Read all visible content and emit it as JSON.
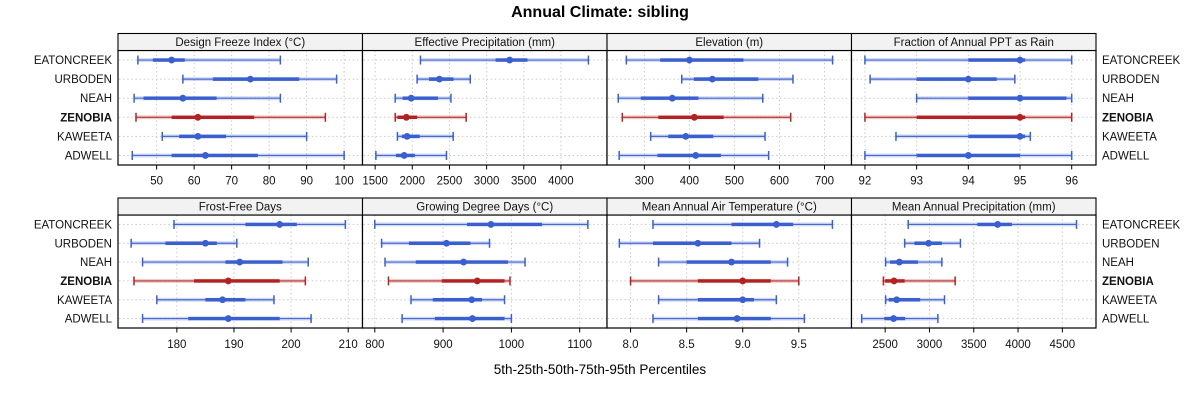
{
  "title": "Annual Climate: sibling",
  "footer": "5th-25th-50th-75th-95th Percentiles",
  "colors": {
    "series_blue": "#3A5FCE",
    "highlight_red": "#B22222",
    "header_bg": "#F2F2F2",
    "panel_border": "#000000",
    "grid": "#C9C9C9",
    "text": "#111111"
  },
  "chart_data": {
    "type": "scatter",
    "subtype": "percentile-dotplot-trellis",
    "layout": "2x4",
    "grid": "dotted",
    "legend_position": "none",
    "title": "Annual Climate: sibling",
    "xlabel": "5th-25th-50th-75th-95th Percentiles",
    "categories": [
      "EATONCREEK",
      "URBODEN",
      "NEAH",
      "ZENOBIA",
      "KAWEETA",
      "ADWELL"
    ],
    "highlighted_category": "ZENOBIA",
    "percentile_labels": [
      "p5",
      "p25",
      "p50",
      "p75",
      "p95"
    ],
    "panels": [
      {
        "title": "Design Freeze Index (°C)",
        "xlim": [
          39.7,
          104.9
        ],
        "ticks": [
          50,
          60,
          70,
          80,
          90,
          100
        ],
        "tick_labels": [
          "50",
          "60",
          "70",
          "80",
          "90",
          "100"
        ],
        "values": {
          "EATONCREEK": [
            45,
            49,
            54,
            57.5,
            83
          ],
          "URBODEN": [
            57,
            65,
            75,
            88,
            98
          ],
          "NEAH": [
            44,
            46.5,
            57,
            66,
            83
          ],
          "ZENOBIA": [
            44.5,
            54,
            61,
            76,
            95
          ],
          "KAWEETA": [
            51.5,
            56,
            61,
            68.5,
            90
          ],
          "ADWELL": [
            43.5,
            54,
            63,
            77,
            100
          ]
        }
      },
      {
        "title": "Effective Precipitation (mm)",
        "xlim": [
          1330,
          4620
        ],
        "ticks": [
          1500,
          2000,
          2500,
          3000,
          3500,
          4000
        ],
        "tick_labels": [
          "1500",
          "2000",
          "2500",
          "3000",
          "3500",
          "4000"
        ],
        "values": {
          "EATONCREEK": [
            2110,
            3120,
            3310,
            3550,
            4370
          ],
          "URBODEN": [
            2065,
            2225,
            2365,
            2555,
            2780
          ],
          "NEAH": [
            1770,
            1870,
            1985,
            2345,
            2520
          ],
          "ZENOBIA": [
            1770,
            1800,
            1920,
            2065,
            2725
          ],
          "KAWEETA": [
            1800,
            1860,
            1930,
            2100,
            2550
          ],
          "ADWELL": [
            1510,
            1780,
            1890,
            2035,
            2460
          ]
        }
      },
      {
        "title": "Elevation (m)",
        "xlim": [
          217,
          760
        ],
        "ticks": [
          300,
          400,
          500,
          600,
          700
        ],
        "tick_labels": [
          "300",
          "400",
          "500",
          "600",
          "700"
        ],
        "values": {
          "EATONCREEK": [
            260,
            335,
            400,
            520,
            718
          ],
          "URBODEN": [
            383,
            410,
            451,
            553,
            630
          ],
          "NEAH": [
            242,
            292,
            362,
            420,
            563
          ],
          "ZENOBIA": [
            251,
            331,
            411,
            476,
            625
          ],
          "KAWEETA": [
            314,
            353,
            392,
            453,
            568
          ],
          "ADWELL": [
            244,
            329,
            414,
            470,
            576
          ]
        }
      },
      {
        "title": "Fraction of Annual PPT as Rain",
        "xlim": [
          91.74,
          96.47
        ],
        "ticks": [
          92,
          93,
          94,
          95,
          96
        ],
        "tick_labels": [
          "92",
          "93",
          "94",
          "95",
          "96"
        ],
        "values": {
          "EATONCREEK": [
            92.0,
            94.0,
            95.0,
            95.1,
            96.0
          ],
          "URBODEN": [
            92.1,
            93.0,
            94.0,
            94.55,
            94.9
          ],
          "NEAH": [
            93.0,
            94.0,
            95.0,
            95.9,
            96.0
          ],
          "ZENOBIA": [
            92.0,
            93.0,
            95.0,
            95.1,
            96.0
          ],
          "KAWEETA": [
            92.6,
            94.0,
            95.0,
            95.1,
            95.2
          ],
          "ADWELL": [
            92.0,
            93.0,
            94.0,
            95.0,
            96.0
          ]
        }
      },
      {
        "title": "Frost-Free Days",
        "xlim": [
          169.7,
          212.5
        ],
        "ticks": [
          180,
          190,
          200,
          210
        ],
        "tick_labels": [
          "180",
          "190",
          "200",
          "210"
        ],
        "values": {
          "EATONCREEK": [
            179.5,
            192,
            198,
            201,
            209.5
          ],
          "URBODEN": [
            172,
            178,
            185,
            187,
            190.5
          ],
          "NEAH": [
            174,
            188.5,
            191,
            198.5,
            203
          ],
          "ZENOBIA": [
            172.5,
            183,
            189,
            198,
            202.5
          ],
          "KAWEETA": [
            176.5,
            185,
            188,
            192,
            197
          ],
          "ADWELL": [
            174,
            182,
            189,
            198,
            203.5
          ]
        }
      },
      {
        "title": "Growing Degree Days (°C)",
        "xlim": [
          782,
          1140
        ],
        "ticks": [
          800,
          900,
          1000,
          1100
        ],
        "tick_labels": [
          "800",
          "900",
          "1000",
          "1100"
        ],
        "values": {
          "EATONCREEK": [
            800,
            935,
            970,
            1045,
            1112
          ],
          "URBODEN": [
            810,
            850,
            905,
            940,
            968
          ],
          "NEAH": [
            815,
            860,
            930,
            995,
            1020
          ],
          "ZENOBIA": [
            820,
            898,
            950,
            990,
            998
          ],
          "KAWEETA": [
            853,
            885,
            942,
            957,
            990
          ],
          "ADWELL": [
            840,
            888,
            943,
            990,
            1000
          ]
        }
      },
      {
        "title": "Mean Annual Air Temperature (°C)",
        "xlim": [
          7.79,
          9.97
        ],
        "ticks": [
          8.0,
          8.5,
          9.0,
          9.5
        ],
        "tick_labels": [
          "8.0",
          "8.5",
          "9.0",
          "9.5"
        ],
        "values": {
          "EATONCREEK": [
            8.2,
            8.9,
            9.3,
            9.45,
            9.8
          ],
          "URBODEN": [
            7.9,
            8.2,
            8.6,
            8.9,
            9.15
          ],
          "NEAH": [
            8.25,
            8.5,
            8.9,
            9.25,
            9.4
          ],
          "ZENOBIA": [
            8.0,
            8.6,
            9.0,
            9.25,
            9.5
          ],
          "KAWEETA": [
            8.25,
            8.6,
            9.0,
            9.1,
            9.3
          ],
          "ADWELL": [
            8.2,
            8.6,
            8.95,
            9.25,
            9.55
          ]
        }
      },
      {
        "title": "Mean Annual Precipitation (mm)",
        "xlim": [
          2120,
          4880
        ],
        "ticks": [
          2500,
          3000,
          3500,
          4000,
          4500
        ],
        "tick_labels": [
          "2500",
          "3000",
          "3500",
          "4000",
          "4500"
        ],
        "values": {
          "EATONCREEK": [
            2760,
            3540,
            3770,
            3930,
            4660
          ],
          "URBODEN": [
            2720,
            2830,
            2990,
            3140,
            3350
          ],
          "NEAH": [
            2505,
            2555,
            2660,
            2870,
            3140
          ],
          "ZENOBIA": [
            2480,
            2500,
            2600,
            2720,
            3290
          ],
          "KAWEETA": [
            2505,
            2540,
            2630,
            2895,
            3170
          ],
          "ADWELL": [
            2235,
            2490,
            2595,
            2725,
            3095
          ]
        }
      }
    ]
  }
}
